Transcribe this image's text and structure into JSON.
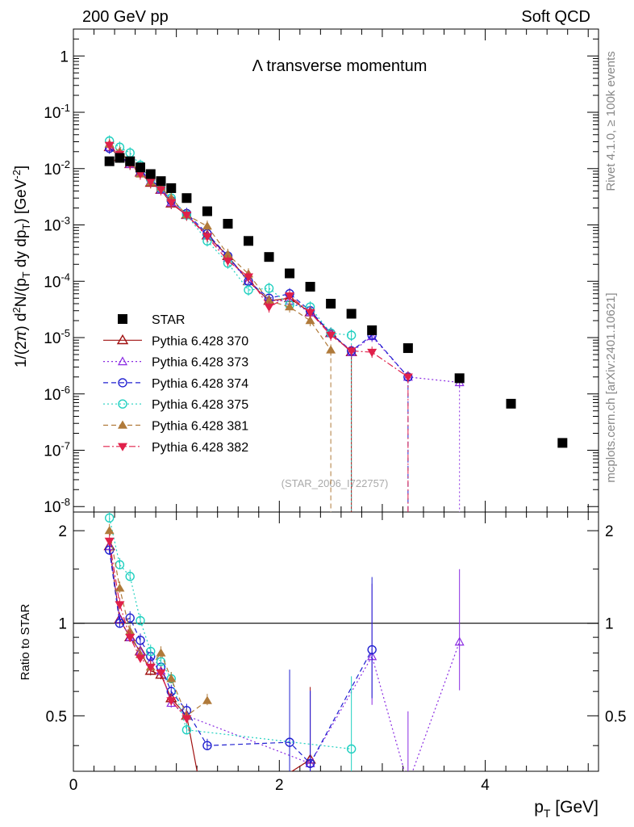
{
  "header": {
    "left": "200 GeV pp",
    "right": "Soft QCD"
  },
  "side_text": {
    "rivet": "Rivet 4.1.0, ≥ 100k events",
    "source": "mcplots.cern.ch [arXiv:2401.10621]"
  },
  "chart_data": {
    "type": "scatter",
    "title": "Λ transverse momentum",
    "watermark": "(STAR_2006_I722757)",
    "xlabel": "p_T [GeV]",
    "ylabel": "1/(2π) d²N/(p_T dy dp_T) [GeV⁻²]",
    "ratio_ylabel": "Ratio to STAR",
    "xlim": [
      0,
      5.1
    ],
    "ylim": [
      8e-09,
      3.0
    ],
    "ratio_ylim": [
      0.33,
      2.3
    ],
    "x_ticks": [
      "0",
      "2",
      "4"
    ],
    "y_ticks": [
      "10^-8",
      "10^-7",
      "10^-6",
      "10^-5",
      "10^-4",
      "10^-3",
      "10^-2",
      "10^-1",
      "1"
    ],
    "ratio_ticks": [
      "0.5",
      "1",
      "2"
    ],
    "legend": [
      {
        "name": "STAR",
        "color": "#000000",
        "marker": "square-filled",
        "dash": ""
      },
      {
        "name": "Pythia 6.428 370",
        "color": "#a01010",
        "marker": "triangle-open",
        "dash": ""
      },
      {
        "name": "Pythia 6.428 373",
        "color": "#8a2be2",
        "marker": "triangle-open-small",
        "dash": "2,3"
      },
      {
        "name": "Pythia 6.428 374",
        "color": "#2020d0",
        "marker": "circle-open",
        "dash": "6,4"
      },
      {
        "name": "Pythia 6.428 375",
        "color": "#20d0c0",
        "marker": "circle-open",
        "dash": "2,3"
      },
      {
        "name": "Pythia 6.428 381",
        "color": "#b07a3a",
        "marker": "triangle-filled",
        "dash": "6,4"
      },
      {
        "name": "Pythia 6.428 382",
        "color": "#e0204a",
        "marker": "triangle-down-filled",
        "dash": "8,3,2,3"
      }
    ],
    "star": {
      "x": [
        0.35,
        0.45,
        0.55,
        0.65,
        0.75,
        0.85,
        0.95,
        1.1,
        1.3,
        1.5,
        1.7,
        1.9,
        2.1,
        2.3,
        2.5,
        2.7,
        2.9,
        3.25,
        3.75,
        4.25,
        4.75
      ],
      "y": [
        0.0135,
        0.0155,
        0.0135,
        0.0105,
        0.008,
        0.006,
        0.0045,
        0.003,
        0.00175,
        0.00105,
        0.00052,
        0.00027,
        0.000138,
        8e-05,
        4e-05,
        2.65e-05,
        1.35e-05,
        6.5e-06,
        1.9e-06,
        6.7e-07,
        1.35e-07
      ]
    },
    "series": [
      {
        "name": "Pythia 6.428 370",
        "x": [
          0.35,
          0.45,
          0.55,
          0.65,
          0.75,
          0.85,
          0.95,
          1.1,
          1.3,
          1.5,
          1.7,
          1.9,
          2.1,
          2.3,
          2.5,
          2.7
        ],
        "y": [
          0.024,
          0.016,
          0.012,
          0.0085,
          0.0056,
          0.0042,
          0.0024,
          0.0015,
          0.00065,
          0.00028,
          0.0001,
          4.5e-05,
          5e-05,
          2.8e-05,
          1.2e-05,
          5.5e-06
        ]
      },
      {
        "name": "Pythia 6.428 373",
        "x": [
          0.35,
          0.45,
          0.55,
          0.65,
          0.75,
          0.85,
          0.95,
          1.1,
          1.3,
          1.5,
          1.7,
          1.9,
          2.1,
          2.3,
          2.5,
          2.7,
          2.9,
          3.25,
          3.75
        ],
        "y": [
          0.024,
          0.016,
          0.012,
          0.0085,
          0.006,
          0.0042,
          0.0025,
          0.0015,
          0.00065,
          0.00026,
          0.0001,
          4.5e-05,
          4.5e-05,
          2.8e-05,
          1.2e-05,
          5.5e-06,
          1.05e-05,
          2e-06,
          1.6e-06
        ]
      },
      {
        "name": "Pythia 6.428 374",
        "x": [
          0.35,
          0.45,
          0.55,
          0.65,
          0.75,
          0.85,
          0.95,
          1.1,
          1.3,
          1.5,
          1.7,
          1.9,
          2.1,
          2.3,
          2.5,
          2.7,
          2.9,
          3.25
        ],
        "y": [
          0.023,
          0.016,
          0.013,
          0.009,
          0.0065,
          0.0044,
          0.0027,
          0.0016,
          0.0007,
          0.00028,
          0.0001,
          5e-05,
          6e-05,
          3e-05,
          1.2e-05,
          5.8e-06,
          1.1e-05,
          2e-06
        ]
      },
      {
        "name": "Pythia 6.428 375",
        "x": [
          0.35,
          0.45,
          0.55,
          0.65,
          0.75,
          0.85,
          0.95,
          1.1,
          1.3,
          1.5,
          1.7,
          1.9,
          2.1,
          2.3,
          2.5,
          2.7
        ],
        "y": [
          0.031,
          0.024,
          0.019,
          0.0115,
          0.0065,
          0.0045,
          0.003,
          0.0015,
          0.00052,
          0.00021,
          7e-05,
          7.5e-05,
          3.8e-05,
          3.5e-05,
          1.2e-05,
          1.1e-05
        ]
      },
      {
        "name": "Pythia 6.428 381",
        "x": [
          0.35,
          0.45,
          0.55,
          0.65,
          0.75,
          0.85,
          0.95,
          1.1,
          1.3,
          1.5,
          1.7,
          1.9,
          2.1,
          2.3,
          2.5
        ],
        "y": [
          0.027,
          0.02,
          0.013,
          0.008,
          0.0057,
          0.0047,
          0.003,
          0.0015,
          0.00095,
          0.0003,
          0.000135,
          4.5e-05,
          3.5e-05,
          2e-05,
          6e-06
        ]
      },
      {
        "name": "Pythia 6.428 382",
        "x": [
          0.35,
          0.45,
          0.55,
          0.65,
          0.75,
          0.85,
          0.95,
          1.1,
          1.3,
          1.5,
          1.7,
          1.9,
          2.1,
          2.3,
          2.5,
          2.7,
          2.9,
          3.25
        ],
        "y": [
          0.026,
          0.018,
          0.012,
          0.008,
          0.0058,
          0.0042,
          0.0025,
          0.0015,
          0.00062,
          0.00023,
          0.00012,
          3.5e-05,
          5.5e-05,
          2.8e-05,
          1.1e-05,
          5.8e-06,
          5.5e-06,
          2e-06
        ]
      }
    ],
    "ratio_series": [
      {
        "name": "Pythia 6.428 370",
        "x": [
          0.35,
          0.45,
          0.55,
          0.65,
          0.75,
          0.85,
          0.95,
          1.1,
          1.3,
          2.3
        ],
        "y": [
          1.78,
          1.03,
          0.9,
          0.81,
          0.7,
          0.68,
          0.57,
          0.5,
          0.22,
          0.36
        ]
      },
      {
        "name": "Pythia 6.428 373",
        "x": [
          0.35,
          0.45,
          0.55,
          0.65,
          0.75,
          0.85,
          0.95,
          1.1,
          2.3,
          2.9,
          3.25,
          3.75
        ],
        "y": [
          1.78,
          1.03,
          0.9,
          0.81,
          0.75,
          0.7,
          0.55,
          0.5,
          0.35,
          0.78,
          0.3,
          0.87
        ]
      },
      {
        "name": "Pythia 6.428 374",
        "x": [
          0.35,
          0.45,
          0.55,
          0.65,
          0.75,
          0.85,
          0.95,
          1.1,
          1.3,
          2.1,
          2.3,
          2.9
        ],
        "y": [
          1.73,
          1.0,
          1.04,
          0.88,
          0.78,
          0.72,
          0.6,
          0.52,
          0.4,
          0.41,
          0.35,
          0.82
        ]
      },
      {
        "name": "Pythia 6.428 375",
        "x": [
          0.35,
          0.45,
          0.55,
          0.65,
          0.75,
          0.85,
          0.95,
          1.1,
          2.7
        ],
        "y": [
          2.2,
          1.55,
          1.42,
          1.02,
          0.81,
          0.75,
          0.66,
          0.45,
          0.39
        ]
      },
      {
        "name": "Pythia 6.428 381",
        "x": [
          0.35,
          0.45,
          0.55,
          0.65,
          0.75,
          0.85,
          0.95,
          1.1,
          1.3
        ],
        "y": [
          2.0,
          1.3,
          0.94,
          0.79,
          0.72,
          0.8,
          0.66,
          0.5,
          0.56
        ]
      },
      {
        "name": "Pythia 6.428 382",
        "x": [
          0.35,
          0.45,
          0.55,
          0.65,
          0.75,
          0.85,
          0.95,
          1.1
        ],
        "y": [
          1.85,
          1.15,
          0.9,
          0.77,
          0.72,
          0.69,
          0.56,
          0.49
        ]
      }
    ]
  }
}
